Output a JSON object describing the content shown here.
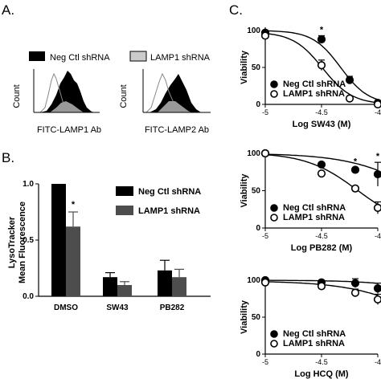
{
  "panel_labels": {
    "a": "A.",
    "b": "B.",
    "c": "C."
  },
  "panel_a": {
    "legend": [
      {
        "label": "Neg Ctl shRNA",
        "color": "#000000"
      },
      {
        "label": "LAMP1 shRNA",
        "color": "#cccccc"
      }
    ],
    "ylabel": "Count",
    "histograms": [
      {
        "xlabel": "FITC-LAMP1 Ab"
      },
      {
        "xlabel": "FITC-LAMP2 Ab"
      }
    ]
  },
  "chart_data": [
    {
      "id": "B",
      "type": "bar",
      "title": "",
      "ylabel_line1": "LysoTracker",
      "ylabel_line2": "Mean Fluorescence",
      "categories": [
        "DMSO",
        "SW43",
        "PB282"
      ],
      "ylim": [
        0,
        1.0
      ],
      "yticks": [
        "0.0",
        "0.5",
        "1.0"
      ],
      "series": [
        {
          "name": "Neg Ctl shRNA",
          "color": "#000000",
          "values": [
            1.0,
            0.17,
            0.23
          ],
          "errors": [
            0,
            0.04,
            0.09
          ]
        },
        {
          "name": "LAMP1 shRNA",
          "color": "#4d4d4d",
          "values": [
            0.62,
            0.1,
            0.17
          ],
          "errors": [
            0.13,
            0.03,
            0.07
          ]
        }
      ],
      "annotations": [
        {
          "category": "DMSO",
          "series": "LAMP1 shRNA",
          "text": "*"
        }
      ],
      "legend_placement": "top-right"
    },
    {
      "id": "C1",
      "type": "scatter",
      "xlabel": "Log SW43 (M)",
      "ylabel": "Viability",
      "xlim": [
        -5,
        -4
      ],
      "ylim": [
        0,
        100
      ],
      "xticks": [
        "-5",
        "-4.5",
        "-4"
      ],
      "yticks": [
        "0",
        "50",
        "100"
      ],
      "series": [
        {
          "name": "Neg Ctl shRNA",
          "marker": "filled-circle",
          "x": [
            -5,
            -4.5,
            -4.25,
            -4
          ],
          "y": [
            97,
            88,
            33,
            2
          ],
          "errors": [
            0,
            5,
            5,
            1
          ],
          "fit": {
            "top": 100,
            "ic50": -4.33,
            "hill": 3.5
          }
        },
        {
          "name": "LAMP1 shRNA",
          "marker": "open-circle",
          "x": [
            -5,
            -4.5,
            -4.25,
            -4
          ],
          "y": [
            93,
            53,
            8,
            0
          ],
          "errors": [
            2,
            7,
            1,
            1
          ],
          "fit": {
            "top": 98,
            "ic50": -4.49,
            "hill": 3.3
          }
        }
      ],
      "annotations": [
        {
          "x": -4.5,
          "text": "*"
        }
      ],
      "legend_placement": "bottom-left"
    },
    {
      "id": "C2",
      "type": "scatter",
      "xlabel": "Log PB282 (M)",
      "ylabel": "Viability",
      "xlim": [
        -5,
        -4
      ],
      "ylim": [
        0,
        100
      ],
      "xticks": [
        "-5",
        "-4.5",
        "-4"
      ],
      "yticks": [
        "0",
        "50",
        "100"
      ],
      "series": [
        {
          "name": "Neg Ctl shRNA",
          "marker": "filled-circle",
          "x": [
            -5,
            -4.5,
            -4.2,
            -4
          ],
          "y": [
            100,
            85,
            78,
            72
          ],
          "errors": [
            0,
            2,
            3,
            16
          ],
          "fit": {
            "top": 100,
            "ic50": -3.62,
            "hill": 1.4
          }
        },
        {
          "name": "LAMP1 shRNA",
          "marker": "open-circle",
          "x": [
            -5,
            -4.5,
            -4.2,
            -4
          ],
          "y": [
            100,
            73,
            53,
            27
          ],
          "errors": [
            0,
            2,
            2,
            8
          ],
          "fit": {
            "top": 101,
            "ic50": -4.18,
            "hill": 1.9
          }
        }
      ],
      "annotations": [
        {
          "x": -4.2,
          "text": "*"
        },
        {
          "x": -4.0,
          "text": "*"
        }
      ],
      "legend_placement": "bottom-left"
    },
    {
      "id": "C3",
      "type": "scatter",
      "xlabel": "Log HCQ (M)",
      "ylabel": "Viability",
      "xlim": [
        -5,
        -4
      ],
      "ylim": [
        0,
        100
      ],
      "xticks": [
        "-5",
        "-4.5",
        "-4"
      ],
      "yticks": [
        "0",
        "50",
        "100"
      ],
      "series": [
        {
          "name": "Neg Ctl shRNA",
          "marker": "filled-circle",
          "x": [
            -5,
            -4.5,
            -4.2,
            -4
          ],
          "y": [
            100,
            97,
            96,
            89
          ],
          "errors": [
            0,
            2,
            6,
            7
          ],
          "fit": {
            "top": 100,
            "ic50": -3.1,
            "hill": 1.5
          }
        },
        {
          "name": "LAMP1 shRNA",
          "marker": "open-circle",
          "x": [
            -5,
            -4.5,
            -4.2,
            -4
          ],
          "y": [
            97,
            92,
            83,
            74
          ],
          "errors": [
            0,
            3,
            5,
            7
          ],
          "fit": {
            "top": 99,
            "ic50": -3.55,
            "hill": 1.35
          }
        }
      ],
      "annotations": [],
      "legend_placement": "bottom-left"
    }
  ]
}
